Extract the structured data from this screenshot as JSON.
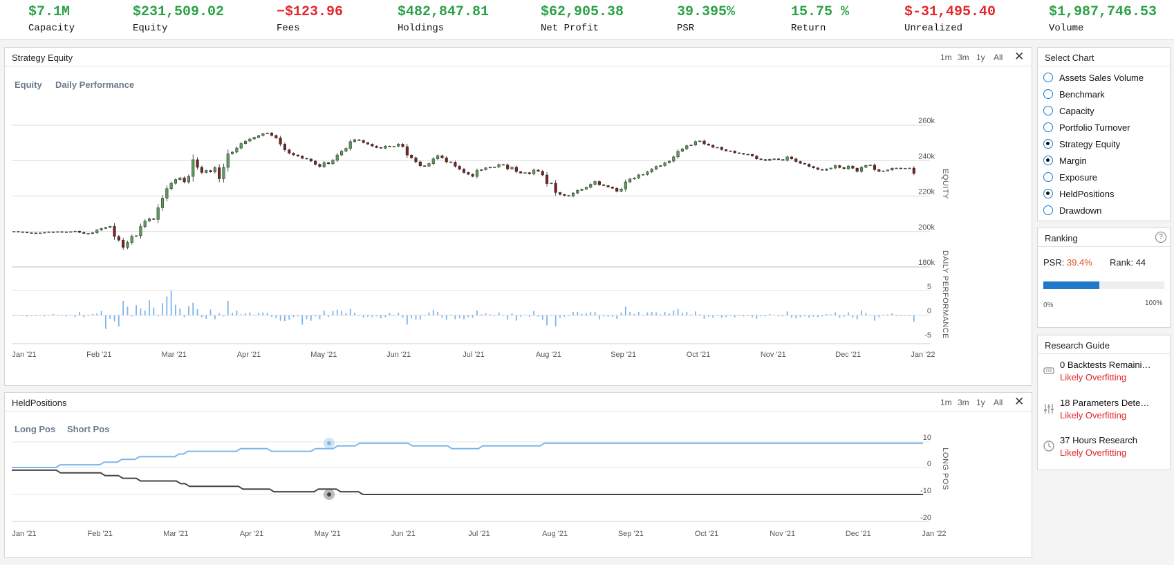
{
  "stats": [
    {
      "value": "$7.1M",
      "label": "Capacity",
      "color": "pos"
    },
    {
      "value": "$231,509.02",
      "label": "Equity",
      "color": "pos"
    },
    {
      "value": "−$123.96",
      "label": "Fees",
      "color": "neg"
    },
    {
      "value": "$482,847.81",
      "label": "Holdings",
      "color": "pos"
    },
    {
      "value": "$62,905.38",
      "label": "Net Profit",
      "color": "pos"
    },
    {
      "value": "39.395%",
      "label": "PSR",
      "color": "pos"
    },
    {
      "value": "15.75 %",
      "label": "Return",
      "color": "pos"
    },
    {
      "value": "$-31,495.40",
      "label": "Unrealized",
      "color": "neg"
    },
    {
      "value": "$1,987,746.53",
      "label": "Volume",
      "color": "pos"
    }
  ],
  "equity_panel": {
    "title": "Strategy Equity",
    "ranges": [
      "1m",
      "3m",
      "1y",
      "All"
    ],
    "close_icon": "close-icon",
    "tabs": [
      "Equity",
      "Daily Performance"
    ],
    "y_ticks": [
      "260k",
      "240k",
      "220k",
      "200k",
      "180k"
    ],
    "perf_ticks": [
      "5",
      "0",
      "-5"
    ],
    "equity_axis_label": "EQUITY",
    "perf_axis_label": "DAILY PERFORMANCE",
    "x_ticks": [
      "Jan '21",
      "Feb '21",
      "Mar '21",
      "Apr '21",
      "May '21",
      "Jun '21",
      "Jul '21",
      "Aug '21",
      "Sep '21",
      "Oct '21",
      "Nov '21",
      "Dec '21",
      "Jan '22"
    ]
  },
  "held_panel": {
    "title": "HeldPositions",
    "ranges": [
      "1m",
      "3m",
      "1y",
      "All"
    ],
    "tabs": [
      "Long Pos",
      "Short Pos"
    ],
    "y_ticks": [
      "10",
      "0",
      "-10",
      "-20"
    ],
    "axis_label": "LONG POS",
    "x_ticks": [
      "Jan '21",
      "Feb '21",
      "Mar '21",
      "Apr '21",
      "May '21",
      "Jun '21",
      "Jul '21",
      "Aug '21",
      "Sep '21",
      "Oct '21",
      "Nov '21",
      "Dec '21",
      "Jan '22"
    ],
    "long_color": "#7cb5ec",
    "short_color": "#434348"
  },
  "select_chart": {
    "title": "Select Chart",
    "options": [
      {
        "label": "Assets Sales Volume",
        "checked": false
      },
      {
        "label": "Benchmark",
        "checked": false
      },
      {
        "label": "Capacity",
        "checked": false
      },
      {
        "label": "Portfolio Turnover",
        "checked": false
      },
      {
        "label": "Strategy Equity",
        "checked": true
      },
      {
        "label": "Margin",
        "checked": true
      },
      {
        "label": "Exposure",
        "checked": false
      },
      {
        "label": "HeldPositions",
        "checked": true
      },
      {
        "label": "Drawdown",
        "checked": false
      }
    ]
  },
  "ranking": {
    "title": "Ranking",
    "help_icon": "help-icon",
    "psr_label": "PSR:",
    "psr_value": "39.4%",
    "rank_label": "Rank:",
    "rank_value": "44",
    "progress": 0.46,
    "min_label": "0%",
    "max_label": "100%",
    "bar_color": "#1f78c8"
  },
  "research_guide": {
    "title": "Research Guide",
    "items": [
      {
        "title": "0 Backtests Remaini…",
        "status": "Likely Overfitting",
        "icon": "backtest-icon"
      },
      {
        "title": "18 Parameters Dete…",
        "status": "Likely Overfitting",
        "icon": "sliders-icon"
      },
      {
        "title": "37 Hours Research",
        "status": "Likely Overfitting",
        "icon": "clock-icon"
      }
    ]
  },
  "chart_data": [
    {
      "type": "candlestick",
      "ylabel": "EQUITY",
      "ylim": [
        180000,
        260000
      ],
      "x_range": [
        "Jan '21",
        "Jan '22"
      ],
      "values": [
        200000,
        199800,
        199600,
        199300,
        199200,
        199100,
        199200,
        199500,
        199800,
        199700,
        199900,
        199800,
        199700,
        199900,
        200200,
        199500,
        198900,
        198800,
        199300,
        200800,
        201700,
        202300,
        202900,
        197200,
        195100,
        191000,
        193800,
        197300,
        197600,
        202800,
        205900,
        207200,
        206800,
        213400,
        218800,
        224200,
        227200,
        229300,
        230300,
        228000,
        231100,
        240500,
        236200,
        233300,
        234400,
        233600,
        236000,
        229800,
        236200,
        243800,
        244800,
        247100,
        249600,
        251000,
        252200,
        253100,
        254100,
        255200,
        255600,
        254200,
        252800,
        249300,
        246100,
        244200,
        243200,
        242500,
        241300,
        240900,
        239700,
        237900,
        236600,
        238900,
        238200,
        240200,
        243200,
        245300,
        246900,
        250700,
        251800,
        251400,
        250200,
        249300,
        248200,
        247400,
        247000,
        248200,
        247900,
        248100,
        249300,
        247900,
        243100,
        241600,
        239300,
        237100,
        236900,
        238300,
        241000,
        242800,
        241600,
        239300,
        239100,
        236800,
        235200,
        233300,
        232300,
        231100,
        234400,
        234900,
        235900,
        236300,
        236400,
        237800,
        237600,
        235300,
        236300,
        233800,
        233000,
        233200,
        232500,
        234700,
        234000,
        231900,
        227000,
        227300,
        222000,
        220900,
        220300,
        220000,
        221700,
        223200,
        223900,
        224900,
        226600,
        228200,
        226400,
        225900,
        225100,
        224400,
        222700,
        224000,
        228000,
        229600,
        230200,
        231900,
        232200,
        233600,
        235200,
        236700,
        237200,
        238800,
        239700,
        242100,
        245300,
        246600,
        248400,
        248800,
        250700,
        251100,
        249400,
        248700,
        247500,
        247500,
        246200,
        245500,
        245400,
        244400,
        244100,
        243600,
        243500,
        242600,
        241000,
        240600,
        240100,
        240800,
        241000,
        240600,
        240200,
        242100,
        241000,
        239500,
        238500,
        238000,
        236700,
        235900,
        235000,
        234600,
        235300,
        235800,
        237200,
        236100,
        235400,
        236900,
        235700,
        233900,
        236200,
        237300,
        237500,
        234900,
        233900,
        234200,
        234700,
        235700,
        235800,
        235500,
        235700,
        235800,
        232800
      ]
    },
    {
      "type": "bar",
      "ylabel": "DAILY PERFORMANCE",
      "ylim": [
        -5,
        5
      ],
      "values": [
        -0.1,
        0.1,
        0,
        -0.2,
        -0.1,
        0,
        0.1,
        -0.2,
        0.1,
        0.3,
        -0.1,
        0.1,
        -0.2,
        0.1,
        -0.3,
        0.7,
        -0.4,
        -0.1,
        0.3,
        0.4,
        0.9,
        -2.8,
        -0.7,
        -1.2,
        -2.3,
        3.0,
        1.8,
        -0.2,
        2.1,
        1.4,
        1.0,
        3.1,
        1.6,
        -0.2,
        2.5,
        3.9,
        5.1,
        2.2,
        1.4,
        -0.4,
        1.9,
        2.6,
        1.3,
        -0.4,
        -0.7,
        1.2,
        -0.8,
        0.4,
        -0.2,
        3.0,
        0.5,
        1.0,
        0.2,
        0.4,
        0.6,
        -0.1,
        0.5,
        0.6,
        0.5,
        -0.3,
        -0.6,
        -1.1,
        -1.2,
        -0.9,
        -0.4,
        -0.2,
        -1.9,
        -0.8,
        -1.1,
        -0.2,
        -0.8,
        1.0,
        -0.3,
        0.9,
        1.2,
        0.9,
        0.5,
        1.3,
        0.5,
        0.0,
        -0.5,
        -0.3,
        -0.4,
        -0.2,
        -0.6,
        -0.4,
        0.5,
        -0.1,
        0.5,
        -0.5,
        -1.9,
        -0.6,
        -0.9,
        -0.9,
        -0.1,
        0.6,
        1.1,
        0.7,
        -0.5,
        -0.9,
        -0.1,
        -0.8,
        -0.6,
        -0.8,
        -0.4,
        -0.5,
        1.0,
        0.2,
        0.4,
        0.2,
        0.0,
        0.6,
        -0.1,
        -0.9,
        0.4,
        -1.1,
        -0.3,
        0.1,
        -0.3,
        0.9,
        -0.3,
        -0.9,
        -2.1,
        0.1,
        -2.3,
        -0.5,
        -0.3,
        -0.1,
        0.7,
        0.7,
        0.3,
        0.4,
        0.7,
        0.7,
        -0.8,
        -0.2,
        -0.3,
        -0.3,
        -0.7,
        0.6,
        1.8,
        0.7,
        0.3,
        0.7,
        0.1,
        0.6,
        0.7,
        0.6,
        0.2,
        0.7,
        0.4,
        1.0,
        1.3,
        0.5,
        0.7,
        0.2,
        0.8,
        0.2,
        -0.7,
        -0.3,
        -0.5,
        0.0,
        -0.5,
        -0.3,
        0.0,
        -0.4,
        -0.1,
        -0.2,
        0.0,
        -0.4,
        -0.7,
        -0.2,
        -0.2,
        0.3,
        0.1,
        -0.2,
        -0.2,
        0.8,
        -0.5,
        -0.6,
        -0.4,
        -0.2,
        -0.5,
        -0.3,
        -0.4,
        -0.2,
        0.3,
        0.2,
        0.6,
        -0.5,
        -0.3,
        0.6,
        -0.5,
        -0.8,
        1.0,
        0.5,
        0.1,
        -1.1,
        -0.4,
        0.1,
        0.2,
        0.4,
        0.0,
        -0.1,
        0.1,
        0.0,
        -1.3
      ]
    },
    {
      "type": "line",
      "ylabel": "LONG POS",
      "ylim": [
        -20,
        10
      ],
      "series": [
        {
          "name": "Long Pos",
          "values": [
            0,
            0,
            0,
            0,
            0,
            0,
            0,
            0,
            0,
            0,
            0,
            1,
            1,
            1,
            1,
            1,
            1,
            1,
            1,
            1,
            1,
            2,
            2,
            2,
            2,
            3,
            3,
            3,
            3,
            4,
            4,
            4,
            4,
            4,
            4,
            4,
            4,
            4,
            5,
            5,
            6,
            6,
            6,
            6,
            6,
            6,
            6,
            6,
            6,
            6,
            6,
            6,
            7,
            7,
            7,
            7,
            7,
            7,
            7,
            6,
            6,
            6,
            6,
            6,
            6,
            6,
            6,
            6,
            6,
            7,
            7,
            7,
            7,
            7,
            8,
            8,
            8,
            8,
            8,
            9,
            9,
            9,
            9,
            9,
            9,
            9,
            9,
            9,
            9,
            9,
            9,
            8,
            8,
            8,
            8,
            8,
            8,
            8,
            8,
            8,
            7,
            7,
            7,
            7,
            7,
            7,
            7,
            8,
            8,
            8,
            8,
            8,
            8,
            8,
            8,
            8,
            8,
            8,
            8,
            8,
            8,
            9,
            9,
            9,
            9,
            9,
            9,
            9,
            9,
            9,
            9,
            9,
            9,
            9,
            9,
            9,
            9,
            9,
            9,
            9,
            9,
            9,
            9,
            9,
            9,
            9,
            9,
            9,
            9,
            9,
            9,
            9,
            9,
            9,
            9,
            9,
            9,
            9,
            9,
            9,
            9,
            9,
            9,
            9,
            9,
            9,
            9,
            9,
            9,
            9,
            9,
            9,
            9,
            9,
            9,
            9,
            9,
            9,
            9,
            9,
            9,
            9,
            9,
            9,
            9,
            9,
            9,
            9,
            9,
            9,
            9,
            9,
            9,
            9,
            9,
            9,
            9,
            9,
            9,
            9,
            9,
            9,
            9,
            9,
            9,
            9,
            9,
            9
          ]
        },
        {
          "name": "Short Pos",
          "values": [
            -1,
            -1,
            -1,
            -1,
            -1,
            -1,
            -1,
            -1,
            -1,
            -1,
            -1,
            -2,
            -2,
            -2,
            -2,
            -2,
            -2,
            -2,
            -2,
            -2,
            -2,
            -3,
            -3,
            -3,
            -3,
            -4,
            -4,
            -4,
            -4,
            -5,
            -5,
            -5,
            -5,
            -5,
            -5,
            -5,
            -5,
            -5,
            -6,
            -6,
            -7,
            -7,
            -7,
            -7,
            -7,
            -7,
            -7,
            -7,
            -7,
            -7,
            -7,
            -7,
            -8,
            -8,
            -8,
            -8,
            -8,
            -8,
            -8,
            -9,
            -9,
            -9,
            -9,
            -9,
            -9,
            -9,
            -9,
            -9,
            -9,
            -8,
            -8,
            -8,
            -8,
            -8,
            -9,
            -9,
            -9,
            -9,
            -9,
            -10,
            -10,
            -10,
            -10,
            -10,
            -10,
            -10,
            -10,
            -10,
            -10,
            -10,
            -10,
            -10,
            -10,
            -10,
            -10,
            -10,
            -10,
            -10,
            -10,
            -10,
            -10,
            -10,
            -10,
            -10,
            -10,
            -10,
            -10,
            -10,
            -10,
            -10,
            -10,
            -10,
            -10,
            -10,
            -10,
            -10,
            -10,
            -10,
            -10,
            -10,
            -10,
            -10,
            -10,
            -10,
            -10,
            -10,
            -10,
            -10,
            -10,
            -10,
            -10,
            -10,
            -10,
            -10,
            -10,
            -10,
            -10,
            -10,
            -10,
            -10,
            -10,
            -10,
            -10,
            -10,
            -10,
            -10,
            -10,
            -10,
            -10,
            -10,
            -10,
            -10,
            -10,
            -10,
            -10,
            -10,
            -10,
            -10,
            -10,
            -10,
            -10,
            -10,
            -10,
            -10,
            -10,
            -10,
            -10,
            -10,
            -10,
            -10,
            -10,
            -10,
            -10,
            -10,
            -10,
            -10,
            -10,
            -10,
            -10,
            -10,
            -10,
            -10,
            -10,
            -10,
            -10,
            -10,
            -10,
            -10,
            -10,
            -10,
            -10,
            -10,
            -10,
            -10,
            -10,
            -10,
            -10,
            -10,
            -10,
            -10,
            -10,
            -10,
            -10,
            -10,
            -10,
            -10
          ]
        }
      ]
    }
  ]
}
